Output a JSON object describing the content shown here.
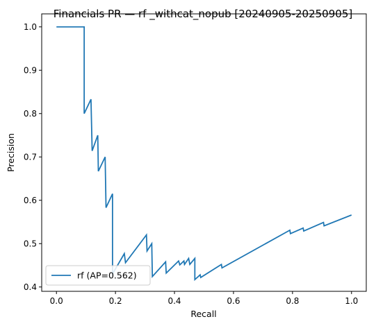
{
  "chart_data": {
    "type": "line",
    "title": "Financials PR — rf _withcat_nopub [20240905-20250905]",
    "xlabel": "Recall",
    "ylabel": "Precision",
    "xlim": [
      -0.05,
      1.05
    ],
    "ylim": [
      0.39,
      1.03
    ],
    "xticks": [
      0.0,
      0.2,
      0.4,
      0.6,
      0.8,
      1.0
    ],
    "xtick_labels": [
      "0.0",
      "0.2",
      "0.4",
      "0.6",
      "0.8",
      "1.0"
    ],
    "yticks": [
      0.4,
      0.5,
      0.6,
      0.7,
      0.8,
      0.9,
      1.0
    ],
    "ytick_labels": [
      "0.4",
      "0.5",
      "0.6",
      "0.7",
      "0.8",
      "0.9",
      "1.0"
    ],
    "grid": false,
    "legend_position": "lower-left",
    "series": [
      {
        "name": "rf (AP=0.562)",
        "color": "#1f77b4",
        "x": [
          0.0,
          0.094,
          0.094,
          0.117,
          0.121,
          0.14,
          0.142,
          0.165,
          0.168,
          0.19,
          0.19,
          0.23,
          0.234,
          0.305,
          0.307,
          0.323,
          0.325,
          0.37,
          0.372,
          0.414,
          0.418,
          0.432,
          0.434,
          0.448,
          0.452,
          0.469,
          0.469,
          0.487,
          0.489,
          0.559,
          0.561,
          0.791,
          0.793,
          0.836,
          0.838,
          0.905,
          0.907,
          1.0
        ],
        "y": [
          1.0,
          1.0,
          0.8,
          0.833,
          0.714,
          0.75,
          0.667,
          0.7,
          0.583,
          0.615,
          0.43,
          0.477,
          0.456,
          0.52,
          0.483,
          0.5,
          0.424,
          0.458,
          0.432,
          0.46,
          0.451,
          0.46,
          0.452,
          0.466,
          0.452,
          0.466,
          0.417,
          0.428,
          0.422,
          0.452,
          0.444,
          0.531,
          0.523,
          0.536,
          0.529,
          0.549,
          0.541,
          0.566
        ]
      }
    ]
  }
}
